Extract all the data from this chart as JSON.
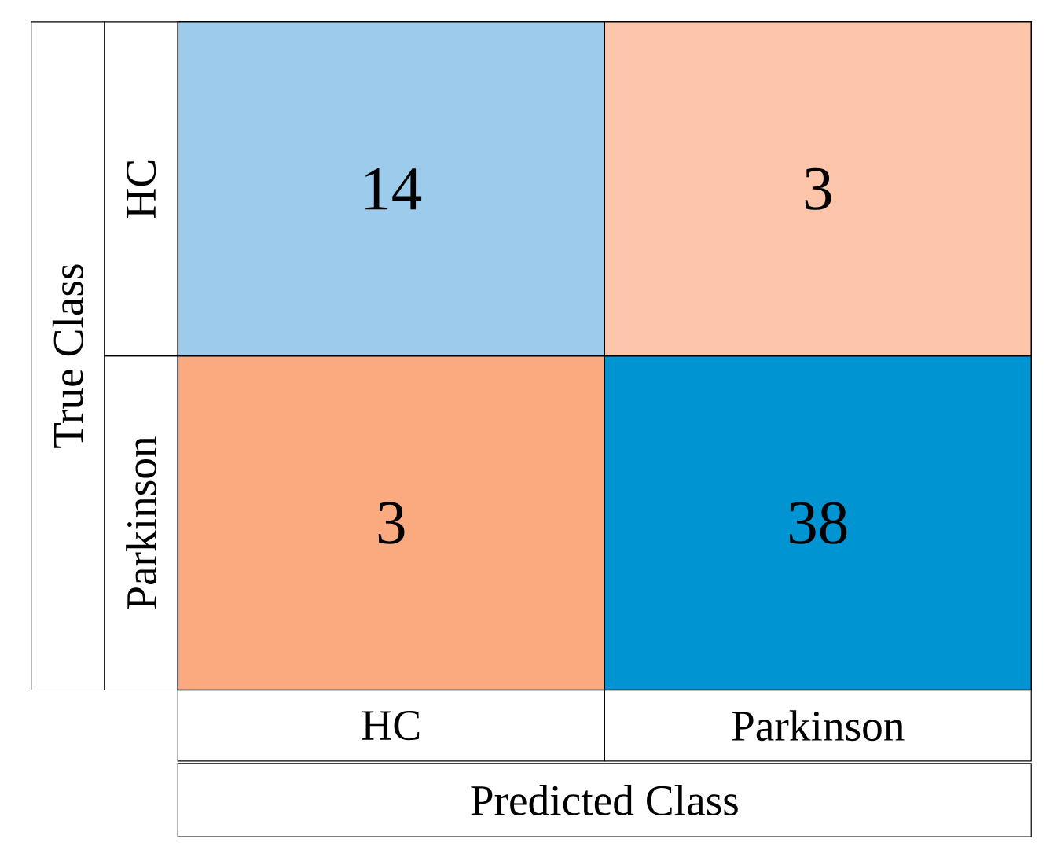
{
  "chart_data": {
    "type": "heatmap",
    "xlabel": "Predicted Class",
    "ylabel": "True Class",
    "categories": [
      "HC",
      "Parkinson"
    ],
    "y_categories": [
      "HC",
      "Parkinson"
    ],
    "cells": [
      [
        14,
        3
      ],
      [
        3,
        38
      ]
    ],
    "colors": [
      [
        "#9ccbec",
        "#fdc5aa"
      ],
      [
        "#fba97e",
        "#0094d2"
      ]
    ],
    "data_labels": true
  }
}
